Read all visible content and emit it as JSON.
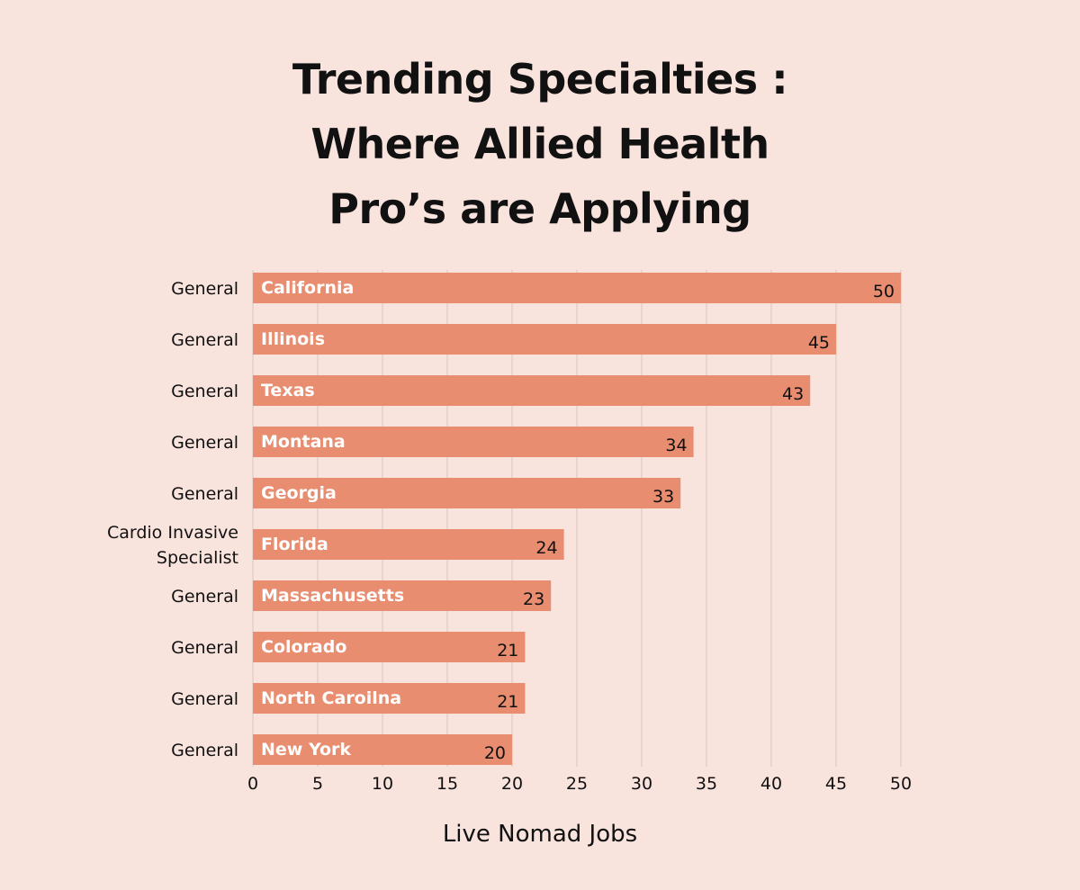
{
  "title_lines": [
    "Trending Specialties :",
    "Where Allied Health",
    "Pro’s are Applying"
  ],
  "colors": {
    "background": "#f9e3dd",
    "bar": "#e88d6f",
    "grid": "#d9c7c2",
    "bar_label_text": "#ffffff",
    "value_text": "#111111"
  },
  "chart_data": {
    "type": "bar",
    "orientation": "horizontal",
    "title": "Trending Specialties : Where Allied Health Pro’s are Applying",
    "xlabel": "Live Nomad Jobs",
    "ylabel": "",
    "xlim": [
      0,
      50
    ],
    "xticks": [
      0,
      5,
      10,
      15,
      20,
      25,
      30,
      35,
      40,
      45,
      50
    ],
    "grid": "vertical",
    "bars": [
      {
        "specialty": [
          "General"
        ],
        "state": "California",
        "value": 50
      },
      {
        "specialty": [
          "General"
        ],
        "state": "Illinois",
        "value": 45
      },
      {
        "specialty": [
          "General"
        ],
        "state": "Texas",
        "value": 43
      },
      {
        "specialty": [
          "General"
        ],
        "state": "Montana",
        "value": 34
      },
      {
        "specialty": [
          "General"
        ],
        "state": "Georgia",
        "value": 33
      },
      {
        "specialty": [
          "Cardio Invasive",
          "Specialist"
        ],
        "state": "Florida",
        "value": 24
      },
      {
        "specialty": [
          "General"
        ],
        "state": "Massachusetts",
        "value": 23
      },
      {
        "specialty": [
          "General"
        ],
        "state": "Colorado",
        "value": 21
      },
      {
        "specialty": [
          "General"
        ],
        "state": "North Caroilna",
        "value": 21
      },
      {
        "specialty": [
          "General"
        ],
        "state": "New York",
        "value": 20
      }
    ]
  }
}
